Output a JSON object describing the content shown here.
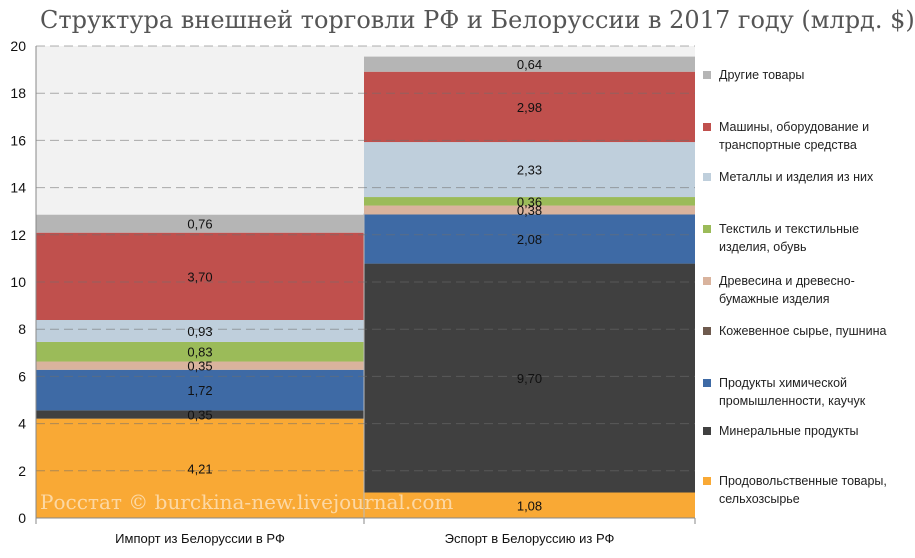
{
  "title": "Структура внешней торговли РФ и Белоруссии в 2017 году (млрд. $)",
  "watermark": "Росстат © burckina-new.livejournal.com",
  "chart_data": {
    "type": "bar",
    "stacked": true,
    "categories": [
      "Импорт из Белоруссии в РФ",
      "Эспорт в Белоруссию из РФ"
    ],
    "ylim": [
      0,
      20
    ],
    "yticks": [
      0,
      2,
      4,
      6,
      8,
      10,
      12,
      14,
      16,
      18,
      20
    ],
    "grid": true,
    "legend_position": "right",
    "series": [
      {
        "name": "Продовольственные товары, сельхозсырье",
        "color": "#F9A935",
        "values": [
          4.21,
          1.08
        ],
        "labels": [
          "4,21",
          "1,08"
        ]
      },
      {
        "name": "Минеральные продукты",
        "color": "#404040",
        "values": [
          0.35,
          9.7
        ],
        "labels": [
          "0,35",
          "9,70"
        ]
      },
      {
        "name": "Продукты химической промышленности, каучук",
        "color": "#3E6AA5",
        "values": [
          1.72,
          2.08
        ],
        "labels": [
          "1,72",
          "2,08"
        ]
      },
      {
        "name": "Кожевенное сырье, пушнина",
        "color": "#6E5A4E",
        "values": [
          0,
          0
        ],
        "labels": [
          "",
          ""
        ]
      },
      {
        "name": "Древесина и древесно-бумажные изделия",
        "color": "#D9B39D",
        "values": [
          0.35,
          0.38
        ],
        "labels": [
          "0,35",
          "0,38"
        ]
      },
      {
        "name": "Текстиль и текстильные изделия, обувь",
        "color": "#9BBB59",
        "values": [
          0.83,
          0.36
        ],
        "labels": [
          "0,83",
          "0,36"
        ]
      },
      {
        "name": "Металлы и изделия из них",
        "color": "#BFCFDC",
        "values": [
          0.93,
          2.33
        ],
        "labels": [
          "0,93",
          "2,33"
        ]
      },
      {
        "name": "Машины, оборудование и транспортные средства",
        "color": "#C0504D",
        "values": [
          3.7,
          2.98
        ],
        "labels": [
          "3,70",
          "2,98"
        ]
      },
      {
        "name": "Другие товары",
        "color": "#B5B5B5",
        "values": [
          0.76,
          0.64
        ],
        "labels": [
          "0,76",
          "0,64"
        ]
      }
    ]
  },
  "legend": [
    {
      "label": "Другие товары",
      "color": "#B5B5B5"
    },
    {
      "label": "Машины, оборудование и транспортные средства",
      "color": "#C0504D"
    },
    {
      "label": "Металлы и изделия из них",
      "color": "#BFCFDC"
    },
    {
      "label": "Текстиль и текстильные изделия, обувь",
      "color": "#9BBB59"
    },
    {
      "label": "Древесина и древесно-бумажные изделия",
      "color": "#D9B39D"
    },
    {
      "label": "Кожевенное сырье, пушнина",
      "color": "#6E5A4E"
    },
    {
      "label": "Продукты химической промышленности, каучук",
      "color": "#3E6AA5"
    },
    {
      "label": "Минеральные продукты",
      "color": "#404040"
    },
    {
      "label": "Продовольственные товары, сельхозсырье",
      "color": "#F9A935"
    }
  ]
}
